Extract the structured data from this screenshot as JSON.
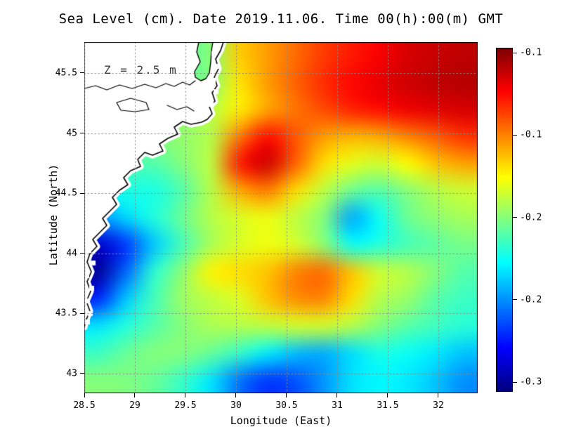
{
  "title": "Sea Level (cm). Date 2019.11.06. Time 00(h):00(m) GMT",
  "annotation": "Z = 2.5 m",
  "xlabel": "Longitude (East)",
  "ylabel": "Latitude (North)",
  "chart_data": {
    "type": "heatmap",
    "title": "Sea Level (cm). Date 2019.11.06. Time 00(h):00(m) GMT",
    "xlabel": "Longitude (East)",
    "ylabel": "Latitude (North)",
    "annotation": "Z = 2.5 m",
    "grid": "dotted",
    "xlim": [
      28.5,
      32.389
    ],
    "ylim": [
      42.836,
      45.757
    ],
    "x_ticks": [
      {
        "value": 28.5,
        "label": "28.5"
      },
      {
        "value": 29,
        "label": "29"
      },
      {
        "value": 29.5,
        "label": "29.5"
      },
      {
        "value": 30,
        "label": "30"
      },
      {
        "value": 30.5,
        "label": "30.5"
      },
      {
        "value": 31,
        "label": "31"
      },
      {
        "value": 31.5,
        "label": "31.5"
      },
      {
        "value": 32,
        "label": "32"
      }
    ],
    "y_ticks": [
      {
        "value": 45.5,
        "label": "45.5"
      },
      {
        "value": 45,
        "label": "45"
      },
      {
        "value": 44.5,
        "label": "44.5"
      },
      {
        "value": 44,
        "label": "44"
      },
      {
        "value": 43.5,
        "label": "43.5"
      },
      {
        "value": 43,
        "label": "43"
      }
    ],
    "colorbar": {
      "colormap": "jet",
      "vmax": -0.097,
      "vmin": -0.305,
      "ticks": [
        {
          "value": -0.1,
          "label": "-0.1"
        },
        {
          "value": -0.15,
          "label": "-0.1"
        },
        {
          "value": -0.2,
          "label": "-0.2"
        },
        {
          "value": -0.25,
          "label": "-0.2"
        },
        {
          "value": -0.3,
          "label": "-0.3"
        }
      ]
    },
    "lon": [
      28.5,
      28.8,
      29.1,
      29.4,
      29.7,
      30.0,
      30.3,
      30.6,
      30.9,
      31.2,
      31.5,
      31.8,
      32.1,
      32.4
    ],
    "lat": [
      45.8,
      45.55,
      45.3,
      45.05,
      44.8,
      44.55,
      44.3,
      44.05,
      43.8,
      43.55,
      43.3,
      43.05,
      42.8
    ],
    "values": [
      [
        -0.19,
        -0.19,
        -0.19,
        -0.205,
        -0.2,
        -0.165,
        -0.155,
        -0.145,
        -0.135,
        -0.128,
        -0.122,
        -0.115,
        -0.112,
        -0.11
      ],
      [
        -0.195,
        -0.195,
        -0.195,
        -0.205,
        -0.2,
        -0.17,
        -0.155,
        -0.143,
        -0.132,
        -0.124,
        -0.118,
        -0.113,
        -0.11,
        -0.108
      ],
      [
        -0.2,
        -0.2,
        -0.2,
        -0.198,
        -0.19,
        -0.172,
        -0.157,
        -0.147,
        -0.138,
        -0.13,
        -0.125,
        -0.12,
        -0.117,
        -0.115
      ],
      [
        -0.205,
        -0.205,
        -0.2,
        -0.197,
        -0.19,
        -0.148,
        -0.125,
        -0.14,
        -0.155,
        -0.16,
        -0.158,
        -0.15,
        -0.142,
        -0.133
      ],
      [
        -0.21,
        -0.21,
        -0.21,
        -0.2,
        -0.188,
        -0.128,
        -0.113,
        -0.142,
        -0.168,
        -0.18,
        -0.185,
        -0.175,
        -0.163,
        -0.156
      ],
      [
        -0.225,
        -0.222,
        -0.222,
        -0.21,
        -0.19,
        -0.158,
        -0.148,
        -0.168,
        -0.188,
        -0.205,
        -0.21,
        -0.2,
        -0.19,
        -0.185
      ],
      [
        -0.25,
        -0.235,
        -0.22,
        -0.205,
        -0.19,
        -0.183,
        -0.178,
        -0.188,
        -0.2,
        -0.245,
        -0.225,
        -0.205,
        -0.198,
        -0.193
      ],
      [
        -0.29,
        -0.268,
        -0.238,
        -0.213,
        -0.193,
        -0.183,
        -0.178,
        -0.183,
        -0.198,
        -0.225,
        -0.22,
        -0.213,
        -0.208,
        -0.203
      ],
      [
        -0.3,
        -0.258,
        -0.218,
        -0.198,
        -0.173,
        -0.168,
        -0.163,
        -0.15,
        -0.145,
        -0.163,
        -0.185,
        -0.19,
        -0.2,
        -0.21
      ],
      [
        -0.272,
        -0.238,
        -0.213,
        -0.195,
        -0.188,
        -0.182,
        -0.163,
        -0.152,
        -0.15,
        -0.168,
        -0.19,
        -0.196,
        -0.209,
        -0.215
      ],
      [
        -0.232,
        -0.22,
        -0.21,
        -0.2,
        -0.192,
        -0.19,
        -0.188,
        -0.184,
        -0.184,
        -0.19,
        -0.2,
        -0.209,
        -0.214,
        -0.219
      ],
      [
        -0.215,
        -0.206,
        -0.2,
        -0.2,
        -0.206,
        -0.216,
        -0.23,
        -0.24,
        -0.244,
        -0.234,
        -0.222,
        -0.225,
        -0.231,
        -0.239
      ],
      [
        -0.2,
        -0.201,
        -0.206,
        -0.216,
        -0.232,
        -0.255,
        -0.268,
        -0.263,
        -0.249,
        -0.233,
        -0.228,
        -0.231,
        -0.239,
        -0.25
      ]
    ],
    "map": {
      "land_polygon": [
        [
          0,
          0
        ],
        [
          163,
          0
        ],
        [
          160,
          14
        ],
        [
          165,
          28
        ],
        [
          157,
          42
        ],
        [
          158,
          50
        ],
        [
          166,
          55
        ],
        [
          173,
          52
        ],
        [
          178,
          44
        ],
        [
          180,
          28
        ],
        [
          181,
          12
        ],
        [
          183,
          0
        ],
        [
          198,
          0
        ],
        [
          194,
          12
        ],
        [
          187,
          24
        ],
        [
          191,
          38
        ],
        [
          185,
          50
        ],
        [
          189,
          62
        ],
        [
          182,
          72
        ],
        [
          186,
          84
        ],
        [
          178,
          92
        ],
        [
          182,
          102
        ],
        [
          175,
          110
        ],
        [
          167,
          114
        ],
        [
          152,
          117
        ],
        [
          140,
          113
        ],
        [
          128,
          121
        ],
        [
          133,
          131
        ],
        [
          119,
          137
        ],
        [
          107,
          145
        ],
        [
          112,
          155
        ],
        [
          97,
          161
        ],
        [
          86,
          157
        ],
        [
          76,
          167
        ],
        [
          80,
          177
        ],
        [
          66,
          183
        ],
        [
          56,
          193
        ],
        [
          62,
          203
        ],
        [
          50,
          211
        ],
        [
          40,
          221
        ],
        [
          46,
          231
        ],
        [
          36,
          241
        ],
        [
          26,
          251
        ],
        [
          32,
          261
        ],
        [
          22,
          271
        ],
        [
          12,
          281
        ],
        [
          18,
          291
        ],
        [
          8,
          301
        ],
        [
          4,
          313
        ],
        [
          10,
          327
        ],
        [
          4,
          341
        ],
        [
          9,
          355
        ],
        [
          3,
          369
        ],
        [
          8,
          383
        ],
        [
          2,
          397
        ],
        [
          0,
          406
        ]
      ],
      "coast_start_index": 12,
      "lagoon_outline": [
        [
          163,
          0
        ],
        [
          160,
          14
        ],
        [
          165,
          28
        ],
        [
          157,
          42
        ],
        [
          158,
          50
        ],
        [
          166,
          55
        ],
        [
          173,
          52
        ],
        [
          178,
          44
        ],
        [
          180,
          28
        ],
        [
          181,
          12
        ],
        [
          183,
          0
        ]
      ],
      "estuary_lines": [
        [
          [
            0,
            66
          ],
          [
            16,
            62
          ],
          [
            32,
            68
          ],
          [
            50,
            61
          ],
          [
            68,
            66
          ],
          [
            86,
            60
          ],
          [
            102,
            65
          ],
          [
            116,
            59
          ],
          [
            128,
            63
          ],
          [
            140,
            57
          ],
          [
            150,
            61
          ],
          [
            158,
            55
          ]
        ],
        [
          [
            46,
            86
          ],
          [
            66,
            80
          ],
          [
            88,
            86
          ],
          [
            92,
            96
          ],
          [
            72,
            99
          ],
          [
            52,
            97
          ],
          [
            46,
            86
          ]
        ],
        [
          [
            118,
            90
          ],
          [
            132,
            96
          ],
          [
            146,
            92
          ],
          [
            156,
            98
          ]
        ]
      ],
      "mask_squares": [
        [
          184,
          16
        ],
        [
          189,
          34
        ],
        [
          183,
          54
        ],
        [
          187,
          70
        ],
        [
          180,
          88
        ],
        [
          20,
          238
        ],
        [
          14,
          252
        ],
        [
          8,
          268
        ],
        [
          6,
          296
        ],
        [
          12,
          314
        ],
        [
          3,
          332
        ],
        [
          10,
          350
        ],
        [
          2,
          368
        ],
        [
          8,
          386
        ],
        [
          4,
          398
        ]
      ]
    }
  }
}
